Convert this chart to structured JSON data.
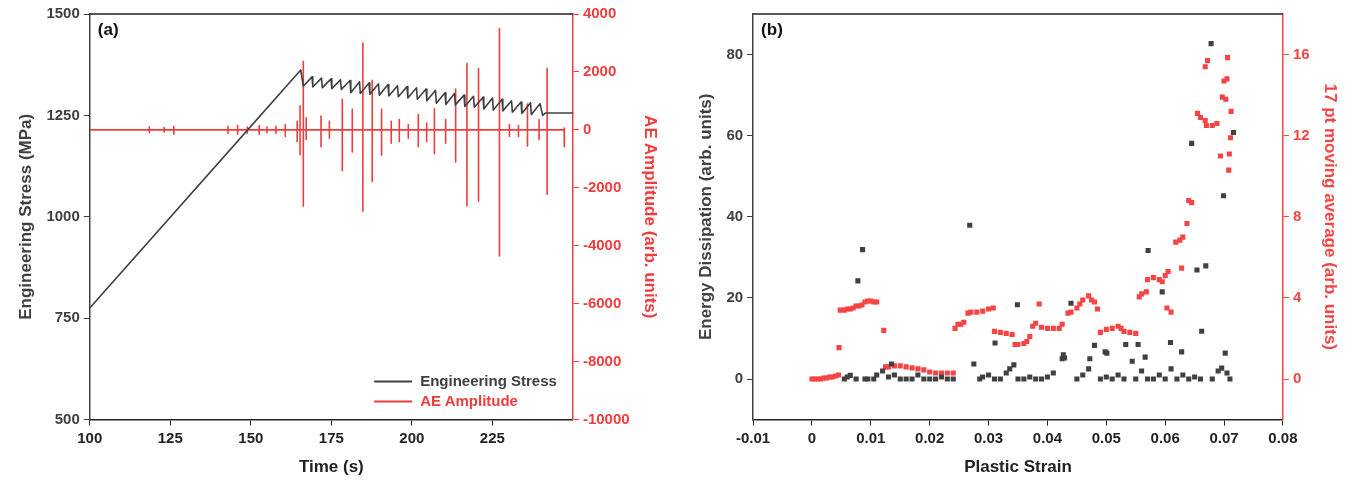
{
  "chart_data": [
    {
      "type": "line",
      "annotations": [
        "(a)"
      ],
      "xlabel": "Time (s)",
      "ylabel": "Engineering Stress (MPa)",
      "y2label": "AE Amplitude (arb. units)",
      "xlim": [
        100,
        250
      ],
      "xticks": [
        100,
        125,
        150,
        175,
        200,
        225
      ],
      "ylim": [
        500,
        1500
      ],
      "yticks": [
        500,
        750,
        1000,
        1250,
        1500
      ],
      "y2lim": [
        -10000,
        4000
      ],
      "y2ticks": [
        -10000,
        -8000,
        -6000,
        -4000,
        -2000,
        0,
        2000,
        4000
      ],
      "legend": "bottom right",
      "marker": "none",
      "series": [
        {
          "name": "Engineering Stress",
          "color": "#404040",
          "x": [
            100,
            165.5,
            166.3,
            169.0,
            169.25,
            171.95,
            172.2,
            174.9,
            175.15,
            177.85,
            178.1,
            180.8,
            181.05,
            183.75,
            184.0,
            186.7,
            186.95,
            189.65,
            189.9,
            192.6,
            192.85,
            195.55,
            195.8,
            198.5,
            198.75,
            201.45,
            201.7,
            204.4,
            204.65,
            207.35,
            207.6,
            210.3,
            210.55,
            213.25,
            213.5,
            216.2,
            216.45,
            219.15,
            219.4,
            222.1,
            222.35,
            225.05,
            225.3,
            228.0,
            228.25,
            230.95,
            231.2,
            233.9,
            234.15,
            236.85,
            237.1,
            239.8,
            240.6,
            241.5,
            250
          ],
          "values": [
            775,
            1362,
            1322,
            1345,
            1320,
            1342,
            1318,
            1340,
            1316,
            1338,
            1314,
            1336,
            1306,
            1333,
            1304,
            1330,
            1302,
            1328,
            1300,
            1326,
            1298,
            1323,
            1296,
            1321,
            1293,
            1318,
            1290,
            1315,
            1286,
            1312,
            1280,
            1306,
            1277,
            1304,
            1276,
            1300,
            1272,
            1297,
            1270,
            1295,
            1266,
            1293,
            1263,
            1290,
            1261,
            1286,
            1258,
            1283,
            1255,
            1281,
            1252,
            1279,
            1250,
            1256,
            1256
          ]
        },
        {
          "name": "AE Amplitude",
          "color": "#f03c3c",
          "axis": "y2",
          "x": [
            100,
            118.5,
            118.5,
            118.5,
            118.5,
            123.1,
            123.1,
            123.1,
            123.1,
            126.1,
            126.1,
            126.1,
            126.1,
            142.9,
            142.9,
            142.9,
            142.9,
            145.9,
            145.9,
            145.9,
            145.9,
            148.9,
            148.9,
            148.9,
            148.9,
            152.6,
            152.6,
            152.6,
            152.6,
            155,
            155,
            155,
            155,
            157.8,
            157.8,
            157.8,
            157.8,
            160.7,
            160.7,
            160.7,
            160.7,
            164.4,
            164.4,
            164.4,
            164.4,
            165.3,
            165.3,
            165.3,
            165.3,
            166.3,
            166.3,
            166.3,
            166.3,
            167.2,
            167.2,
            167.2,
            167.2,
            171.8,
            171.8,
            171.8,
            171.8,
            174.4,
            174.4,
            174.4,
            174.4,
            178.4,
            178.4,
            178.4,
            178.4,
            181.5,
            181.5,
            181.5,
            181.5,
            184.8,
            184.8,
            184.8,
            184.8,
            187.7,
            187.7,
            187.7,
            187.7,
            190.6,
            190.6,
            190.6,
            190.6,
            193.6,
            193.6,
            193.6,
            193.6,
            196.1,
            196.1,
            196.1,
            196.1,
            198.9,
            198.9,
            198.9,
            198.9,
            202,
            202,
            202,
            202,
            204.6,
            204.6,
            204.6,
            204.6,
            207,
            207,
            207,
            207,
            210.5,
            210.5,
            210.5,
            210.5,
            213.6,
            213.6,
            213.6,
            213.6,
            217.1,
            217.1,
            217.1,
            217.1,
            220.7,
            220.7,
            220.7,
            220.7,
            227.2,
            227.2,
            227.2,
            227.2,
            230.3,
            230.3,
            230.3,
            230.3,
            233.1,
            233.1,
            233.1,
            233.1,
            235.9,
            235.9,
            235.9,
            235.9,
            239.5,
            239.5,
            239.5,
            239.5,
            242,
            242,
            242,
            242,
            247.3,
            247.3,
            247.3,
            247.3,
            247.5
          ],
          "values": [
            0,
            0,
            100,
            -100,
            0,
            0,
            80,
            -80,
            0,
            0,
            120,
            -150,
            0,
            0,
            120,
            -120,
            0,
            0,
            150,
            -150,
            0,
            0,
            100,
            -120,
            0,
            0,
            150,
            -150,
            0,
            0,
            100,
            -100,
            0,
            0,
            120,
            -120,
            0,
            0,
            180,
            -230,
            0,
            0,
            300,
            -400,
            0,
            0,
            830,
            -860,
            0,
            0,
            2370,
            -2630,
            0,
            0,
            420,
            -330,
            0,
            0,
            480,
            -580,
            0,
            0,
            300,
            -290,
            0,
            0,
            1060,
            -1400,
            0,
            0,
            710,
            -760,
            0,
            0,
            3000,
            -2810,
            0,
            0,
            1710,
            -1780,
            0,
            0,
            710,
            -870,
            0,
            0,
            300,
            -460,
            0,
            0,
            360,
            -400,
            0,
            0,
            180,
            -290,
            0,
            0,
            530,
            -580,
            0,
            0,
            240,
            -400,
            0,
            0,
            730,
            -820,
            0,
            0,
            360,
            -460,
            0,
            0,
            1410,
            -1110,
            0,
            0,
            2290,
            -2630,
            0,
            0,
            2120,
            -2460,
            0,
            0,
            3500,
            -4350,
            0,
            0,
            180,
            -230,
            0,
            0,
            150,
            -230,
            0,
            0,
            890,
            -560,
            0,
            0,
            360,
            -330,
            0,
            0,
            2120,
            -2220,
            0,
            0,
            60,
            -580,
            0,
            0
          ]
        }
      ]
    },
    {
      "type": "scatter",
      "annotations": [
        "(b)"
      ],
      "xlabel": "Plastic Strain",
      "ylabel": "Energy Dissipation (arb. units)",
      "y2label": "17 pt moving average (arb. units)",
      "xlim": [
        -0.01,
        0.08
      ],
      "xticks": [
        -0.01,
        0,
        0.01,
        0.02,
        0.03,
        0.04,
        0.05,
        0.06,
        0.07,
        0.08
      ],
      "ylim": [
        -10,
        90
      ],
      "yticks": [
        0,
        20,
        40,
        60,
        80
      ],
      "y2lim": [
        -2,
        18
      ],
      "y2ticks": [
        0,
        4,
        8,
        12,
        16
      ],
      "marker": "square",
      "series": [
        {
          "color": "#404040",
          "x": [
            0.0065,
            0.0078,
            0.0086,
            0.0135,
            0.0268,
            0.0275,
            0.0311,
            0.0336,
            0.0343,
            0.0349,
            0.0425,
            0.0427,
            0.0429,
            0.044,
            0.0472,
            0.048,
            0.0498,
            0.0501,
            0.0533,
            0.0544,
            0.0554,
            0.0566,
            0.0571,
            0.0595,
            0.0609,
            0.0628,
            0.0645,
            0.0654,
            0.0662,
            0.0669,
            0.0678,
            0.0696,
            0.0699,
            0.0702,
            0.0716,
            0.0055,
            0.006,
            0.0075,
            0.009,
            0.0095,
            0.0105,
            0.011,
            0.012,
            0.013,
            0.014,
            0.015,
            0.016,
            0.017,
            0.018,
            0.019,
            0.02,
            0.021,
            0.022,
            0.023,
            0.024,
            0.0285,
            0.029,
            0.03,
            0.031,
            0.032,
            0.033,
            0.035,
            0.036,
            0.037,
            0.038,
            0.039,
            0.04,
            0.041,
            0.045,
            0.046,
            0.047,
            0.049,
            0.05,
            0.051,
            0.052,
            0.053,
            0.055,
            0.056,
            0.057,
            0.058,
            0.059,
            0.06,
            0.061,
            0.062,
            0.063,
            0.064,
            0.065,
            0.066,
            0.068,
            0.069,
            0.0705,
            0.071
          ],
          "values": [
            0.9,
            24.2,
            31.9,
            3.7,
            37.9,
            3.7,
            8.9,
            2.5,
            3.5,
            18.3,
            5,
            6,
            5.2,
            18.7,
            5,
            8.3,
            6.7,
            6.4,
            8.5,
            4.4,
            8.5,
            5.4,
            31.7,
            21.5,
            9,
            6.7,
            58.1,
            26.9,
            11.8,
            27.9,
            82.7,
            2.7,
            45.2,
            6.4,
            60.8,
            0,
            0.5,
            0,
            0,
            0,
            0,
            1,
            2,
            0.5,
            1,
            0,
            0,
            0,
            1,
            0,
            0,
            0,
            0.5,
            0,
            0,
            0,
            0.5,
            1,
            0,
            0,
            1.5,
            0,
            0,
            0.5,
            0,
            0,
            0.5,
            1.5,
            0,
            1,
            2.5,
            0,
            0.5,
            0,
            1,
            0,
            0,
            2,
            0,
            0,
            1,
            0,
            2.5,
            0,
            1,
            0,
            0.5,
            0,
            0,
            2,
            1.5,
            0
          ]
        },
        {
          "color": "#f44444",
          "axis": "y2",
          "x": [
            0,
            0.0005,
            0.001,
            0.0015,
            0.002,
            0.0025,
            0.003,
            0.0035,
            0.004,
            0.0045,
            0.0046,
            0.0048,
            0.0055,
            0.006,
            0.0065,
            0.007,
            0.0075,
            0.008,
            0.0085,
            0.009,
            0.0095,
            0.01,
            0.0105,
            0.011,
            0.0122,
            0.0125,
            0.013,
            0.014,
            0.015,
            0.016,
            0.017,
            0.018,
            0.019,
            0.02,
            0.021,
            0.022,
            0.023,
            0.024,
            0.0243,
            0.0248,
            0.0253,
            0.0258,
            0.0265,
            0.027,
            0.028,
            0.029,
            0.03,
            0.0308,
            0.031,
            0.032,
            0.033,
            0.034,
            0.0345,
            0.035,
            0.036,
            0.0365,
            0.037,
            0.0375,
            0.038,
            0.0386,
            0.039,
            0.04,
            0.041,
            0.042,
            0.0425,
            0.0435,
            0.044,
            0.045,
            0.0455,
            0.046,
            0.047,
            0.0475,
            0.048,
            0.0485,
            0.049,
            0.05,
            0.051,
            0.052,
            0.0525,
            0.053,
            0.054,
            0.055,
            0.0556,
            0.056,
            0.0568,
            0.057,
            0.058,
            0.059,
            0.0595,
            0.06,
            0.0603,
            0.0605,
            0.061,
            0.0618,
            0.0625,
            0.0628,
            0.063,
            0.0637,
            0.064,
            0.0645,
            0.0655,
            0.066,
            0.0668,
            0.0668,
            0.0672,
            0.067,
            0.068,
            0.0688,
            0.0694,
            0.0697,
            0.07,
            0.0703,
            0.0705,
            0.0706,
            0.0708,
            0.0709,
            0.0711,
            0.0712
          ],
          "values": [
            0,
            0,
            0,
            0,
            0.05,
            0.05,
            0.1,
            0.1,
            0.15,
            0.2,
            1.55,
            3.4,
            3.4,
            3.45,
            3.45,
            3.5,
            3.6,
            3.6,
            3.65,
            3.8,
            3.85,
            3.85,
            3.8,
            3.8,
            2.4,
            0.6,
            0.6,
            0.65,
            0.65,
            0.6,
            0.55,
            0.5,
            0.45,
            0.35,
            0.3,
            0.3,
            0.3,
            0.3,
            2.5,
            2.7,
            2.7,
            2.8,
            3.25,
            3.3,
            3.3,
            3.35,
            3.45,
            3.5,
            2.35,
            2.3,
            2.25,
            2.2,
            1.7,
            1.7,
            1.75,
            1.85,
            2.1,
            2.6,
            2.75,
            3.7,
            2.55,
            2.5,
            2.5,
            2.5,
            2.7,
            3.25,
            3.3,
            3.5,
            3.7,
            3.9,
            4.1,
            3.9,
            3.8,
            3.45,
            2.3,
            2.45,
            2.5,
            2.6,
            2.5,
            2.35,
            2.3,
            2.25,
            4.05,
            4.2,
            4.3,
            4.9,
            5,
            4.9,
            4.8,
            5.1,
            3.5,
            5.3,
            3.3,
            6.75,
            6.85,
            5.47,
            7,
            7.67,
            8.8,
            8.7,
            13.1,
            12.9,
            12.75,
            15.4,
            15.7,
            12.5,
            12.5,
            12.6,
            11,
            13.9,
            14.7,
            13.8,
            14.8,
            15.85,
            10.3,
            11.1,
            11.9,
            13.2
          ]
        }
      ]
    }
  ]
}
